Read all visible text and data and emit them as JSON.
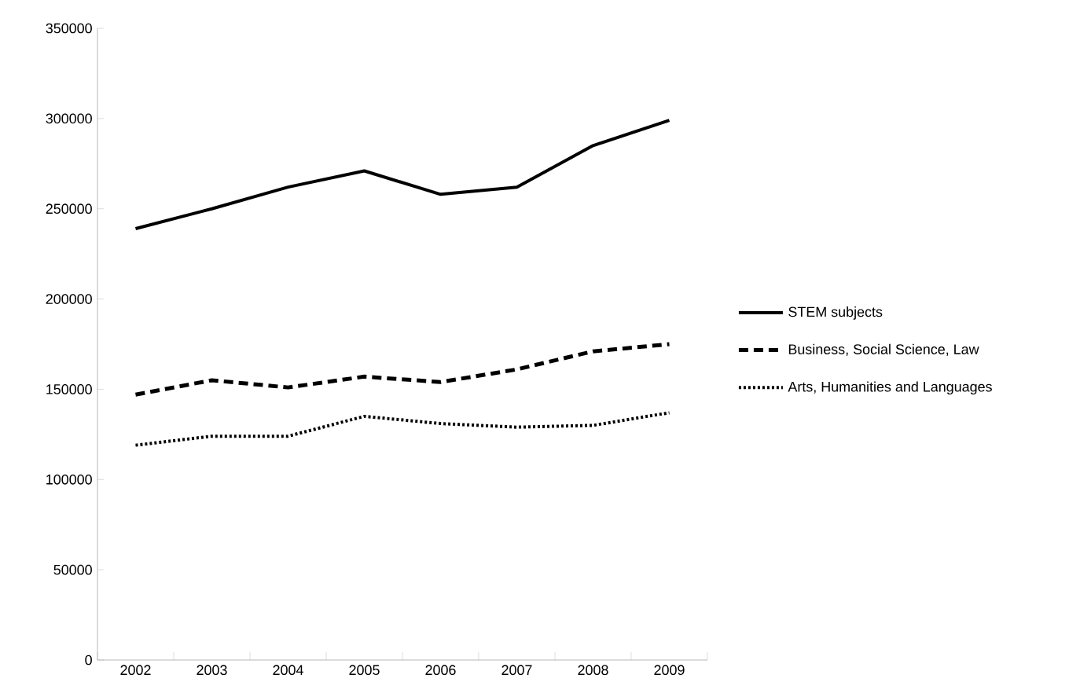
{
  "chart_data": {
    "type": "line",
    "categories": [
      "2002",
      "2003",
      "2004",
      "2005",
      "2006",
      "2007",
      "2008",
      "2009"
    ],
    "series": [
      {
        "name": "STEM subjects",
        "color": "#000000",
        "line_style": "solid",
        "values": [
          239000,
          250000,
          262000,
          271000,
          258000,
          262000,
          285000,
          299000
        ]
      },
      {
        "name": "Business, Social Science, Law",
        "color": "#000000",
        "line_style": "dashed",
        "values": [
          147000,
          155000,
          151000,
          157000,
          154000,
          161000,
          171000,
          175000
        ]
      },
      {
        "name": "Arts, Humanities and Languages",
        "color": "#000000",
        "line_style": "dotted",
        "values": [
          119000,
          124000,
          124000,
          135000,
          131000,
          129000,
          130000,
          137000
        ]
      }
    ],
    "ylim": [
      0,
      350000
    ],
    "yticks": [
      0,
      50000,
      100000,
      150000,
      200000,
      250000,
      300000,
      350000
    ],
    "grid": false,
    "legend": "right"
  }
}
